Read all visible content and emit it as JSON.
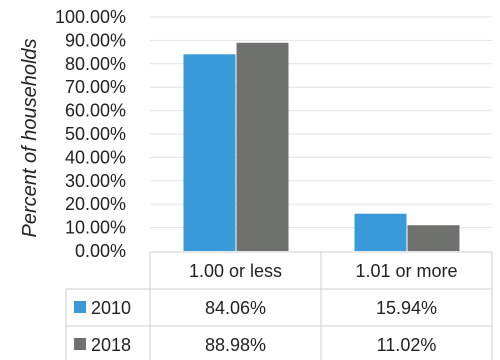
{
  "chart_data": {
    "type": "bar",
    "ylabel": "Percent of households",
    "ylim": [
      0,
      100
    ],
    "yticks": [
      "0.00%",
      "10.00%",
      "20.00%",
      "30.00%",
      "40.00%",
      "50.00%",
      "60.00%",
      "70.00%",
      "80.00%",
      "90.00%",
      "100.00%"
    ],
    "categories": [
      "1.00 or less",
      "1.01 or more"
    ],
    "series": [
      {
        "name": "2010",
        "color": "#3a9ad9",
        "values": [
          84.06,
          15.94
        ],
        "labels": [
          "84.06%",
          "15.94%"
        ]
      },
      {
        "name": "2018",
        "color": "#6f716f",
        "values": [
          88.98,
          11.02
        ],
        "labels": [
          "88.98%",
          "11.02%"
        ]
      }
    ],
    "grid": true,
    "legend": "data-table"
  }
}
